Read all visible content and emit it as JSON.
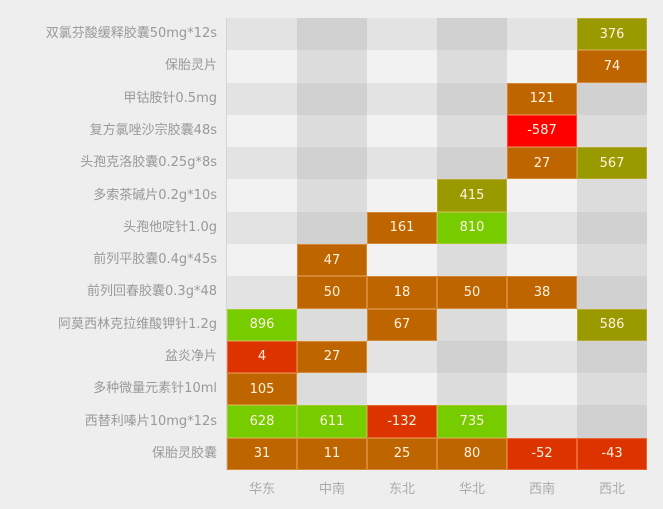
{
  "chart_data": {
    "type": "heatmap",
    "title": "",
    "xlabel": "",
    "ylabel": "",
    "x_categories": [
      "华东",
      "中南",
      "东北",
      "华北",
      "西南",
      "西北"
    ],
    "y_categories": [
      "双氯芬酸缓释胶囊50mg*12s",
      "保胎灵片",
      "甲钴胺针0.5mg",
      "复方氯唑沙宗胶囊48s",
      "头孢克洛胶囊0.25g*8s",
      "多索茶碱片0.2g*10s",
      "头孢他啶针1.0g",
      "前列平胶囊0.4g*45s",
      "前列回春胶囊0.3g*48",
      "阿莫西林克拉维酸钾针1.2g",
      "盆炎净片",
      "多种微量元素针10ml",
      "西替利嗪片10mg*12s",
      "保胎灵胶囊"
    ],
    "values": [
      [
        null,
        null,
        null,
        null,
        null,
        376
      ],
      [
        null,
        null,
        null,
        null,
        null,
        74
      ],
      [
        null,
        null,
        null,
        null,
        121,
        null
      ],
      [
        null,
        null,
        null,
        null,
        -587,
        null
      ],
      [
        null,
        null,
        null,
        null,
        27,
        567
      ],
      [
        null,
        null,
        null,
        415,
        null,
        null
      ],
      [
        null,
        null,
        161,
        810,
        null,
        null
      ],
      [
        null,
        47,
        null,
        null,
        null,
        null
      ],
      [
        null,
        50,
        18,
        50,
        38,
        null
      ],
      [
        896,
        null,
        67,
        null,
        null,
        586
      ],
      [
        4,
        27,
        null,
        null,
        null,
        null
      ],
      [
        105,
        null,
        null,
        null,
        null,
        null
      ],
      [
        628,
        611,
        -132,
        735,
        null,
        null
      ],
      [
        31,
        11,
        25,
        80,
        -52,
        -43
      ]
    ],
    "color_scale": [
      {
        "range": "<= -500",
        "color": "#ff0000"
      },
      {
        "range": "-499 to 10",
        "color": "#dd3300"
      },
      {
        "range": "11 to 300",
        "color": "#bf6500"
      },
      {
        "range": "301 to 600",
        "color": "#999900"
      },
      {
        "range": "> 600",
        "color": "#77cc00"
      }
    ],
    "empty_cell_colors": {
      "even_row": [
        "#e3e3e3",
        "#d1d1d1"
      ],
      "odd_row": [
        "#f2f2f2",
        "#dcdcdc"
      ]
    },
    "legend": "none",
    "grid": false
  }
}
